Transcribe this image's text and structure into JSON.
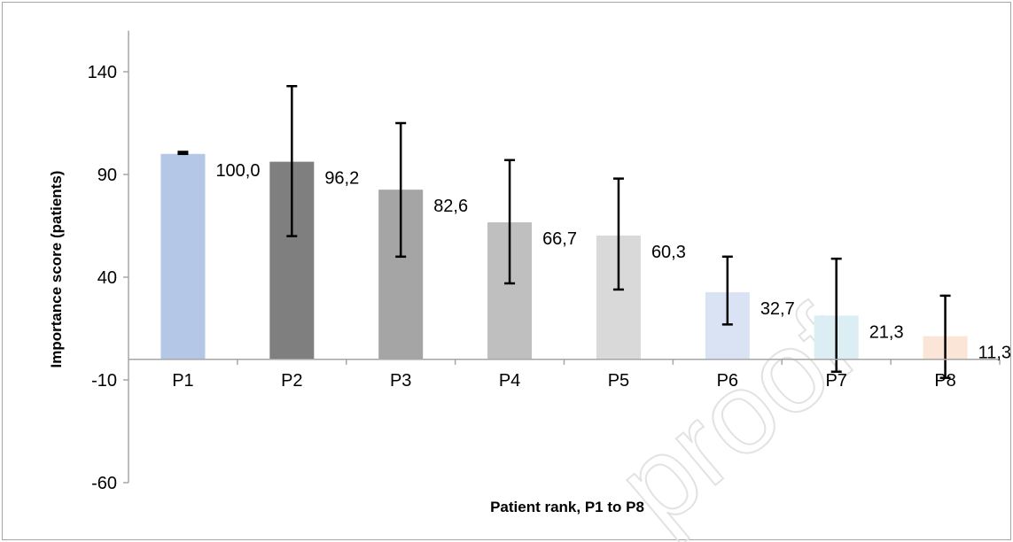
{
  "chart_data": {
    "type": "bar",
    "categories": [
      "P1",
      "P2",
      "P3",
      "P4",
      "P5",
      "P6",
      "P7",
      "P8"
    ],
    "series": [
      {
        "values": [
          100.0,
          96.2,
          82.6,
          66.7,
          60.3,
          32.7,
          21.3,
          11.3
        ],
        "value_labels": [
          "100,0",
          "96,2",
          "82,6",
          "66,7",
          "60,3",
          "32,7",
          "21,3",
          "11,3"
        ],
        "error_low": [
          100.0,
          60.0,
          50.0,
          37.0,
          34.0,
          17.0,
          -6.0,
          -9.0
        ],
        "error_high": [
          101.0,
          133.0,
          115.0,
          97.0,
          88.0,
          50.0,
          49.0,
          31.0
        ]
      }
    ],
    "bar_colors": [
      "#b4c7e7",
      "#7f7f7f",
      "#a5a5a5",
      "#bfbfbf",
      "#d9d9d9",
      "#dae3f3",
      "#daeef3",
      "#fbe5d6"
    ],
    "xlabel": "Patient rank, P1 to P8",
    "ylabel": "Importance score (patients)",
    "yticks": [
      140,
      90,
      40,
      -10,
      -60
    ],
    "ylim": [
      -60,
      160
    ],
    "grid": false,
    "legend": "none",
    "watermark": "proof"
  }
}
